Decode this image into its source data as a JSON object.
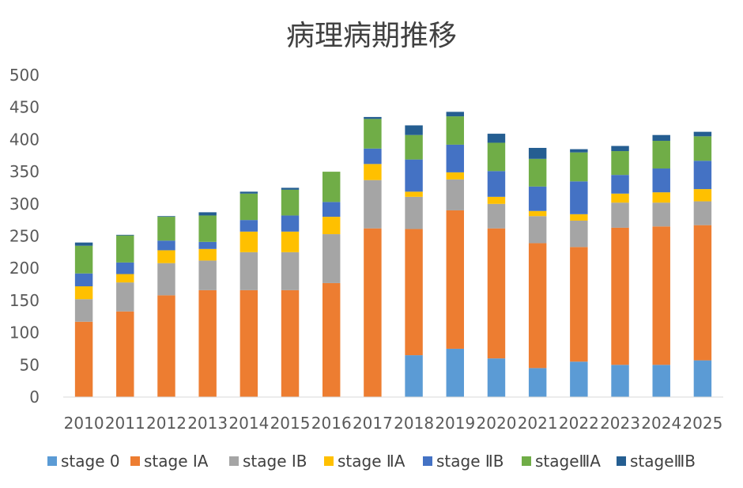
{
  "chart_data": {
    "type": "bar",
    "stacked": true,
    "title": "病理病期推移",
    "xlabel": "",
    "ylabel": "",
    "ylim": [
      0,
      500
    ],
    "yticks": [
      0,
      50,
      100,
      150,
      200,
      250,
      300,
      350,
      400,
      450,
      500
    ],
    "categories": [
      "2010",
      "2011",
      "2012",
      "2013",
      "2014",
      "2015",
      "2016",
      "2017",
      "2018",
      "2019",
      "2020",
      "2021",
      "2022",
      "2023",
      "2024",
      "2025"
    ],
    "legend_position": "bottom",
    "grid": false,
    "series": [
      {
        "name": "stage 0",
        "color": "#5B9BD5",
        "values": [
          0,
          0,
          0,
          0,
          0,
          0,
          0,
          0,
          65,
          75,
          60,
          45,
          55,
          50,
          50,
          57
        ]
      },
      {
        "name": "stage ⅠA",
        "color": "#ED7D31",
        "values": [
          117,
          133,
          158,
          166,
          166,
          166,
          177,
          262,
          196,
          215,
          202,
          194,
          178,
          213,
          215,
          210
        ]
      },
      {
        "name": "stage ⅠB",
        "color": "#A5A5A5",
        "values": [
          35,
          45,
          50,
          46,
          59,
          59,
          76,
          75,
          50,
          48,
          38,
          42,
          41,
          39,
          37,
          37
        ]
      },
      {
        "name": "stage ⅡA",
        "color": "#FFC000",
        "values": [
          20,
          13,
          20,
          18,
          32,
          32,
          27,
          25,
          8,
          11,
          11,
          8,
          10,
          14,
          16,
          19
        ]
      },
      {
        "name": "stage ⅡB",
        "color": "#4472C4",
        "values": [
          20,
          18,
          15,
          11,
          18,
          25,
          23,
          24,
          50,
          43,
          40,
          38,
          51,
          29,
          37,
          44
        ]
      },
      {
        "name": "stageⅢA",
        "color": "#70AD47",
        "values": [
          43,
          42,
          37,
          41,
          41,
          40,
          47,
          46,
          38,
          44,
          44,
          43,
          45,
          37,
          43,
          38
        ]
      },
      {
        "name": "stageⅢB",
        "color": "#255E91",
        "values": [
          5,
          1,
          1,
          5,
          3,
          3,
          0,
          3,
          15,
          7,
          14,
          17,
          5,
          8,
          9,
          7
        ]
      }
    ]
  }
}
